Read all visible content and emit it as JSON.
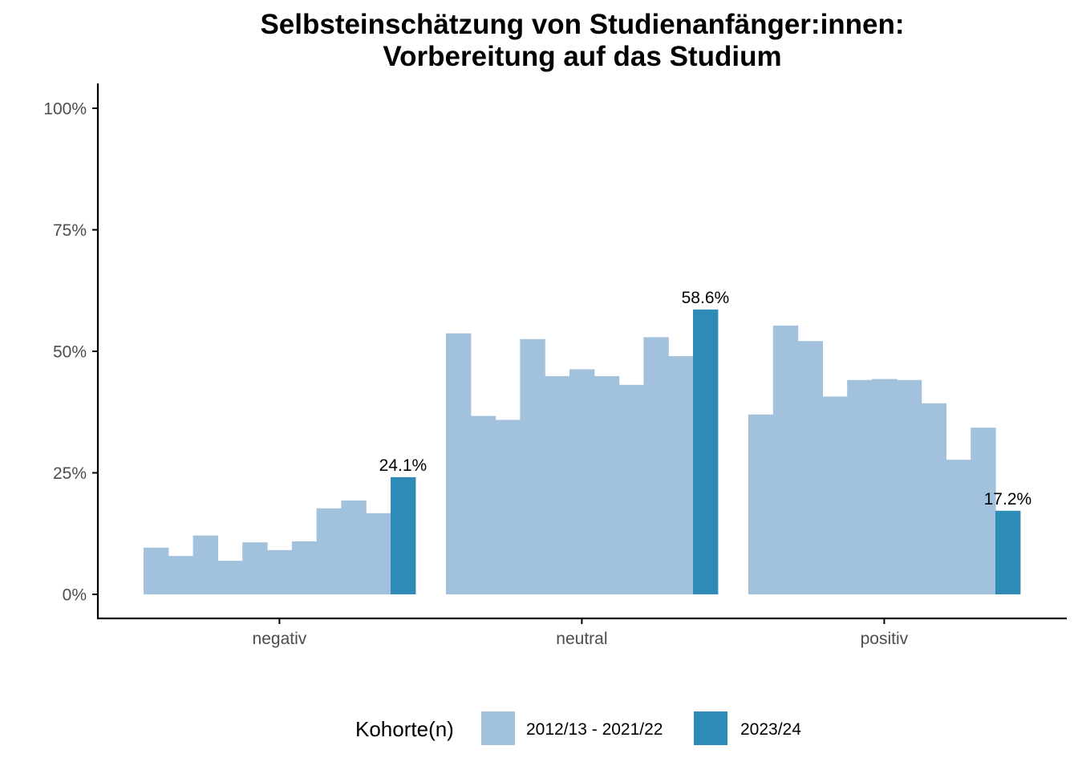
{
  "chart_data": {
    "type": "bar",
    "title_lines": [
      "Selbsteinschätzung von Studienanfänger:innen:",
      "Vorbereitung auf das Studium"
    ],
    "xlabel": "",
    "ylabel": "",
    "categories": [
      "negativ",
      "neutral",
      "positiv"
    ],
    "ylim": [
      0,
      1
    ],
    "y_ticks": [
      0,
      0.25,
      0.5,
      0.75,
      1
    ],
    "y_tick_labels": [
      "0%",
      "25%",
      "50%",
      "75%",
      "100%"
    ],
    "series": [
      {
        "name": "2012/13 - 2021/22",
        "color": "#a1c1dd",
        "values_per_category": [
          [
            0.096,
            0.079,
            0.121,
            0.069,
            0.107,
            0.091,
            0.109,
            0.177,
            0.193,
            0.167
          ],
          [
            0.537,
            0.367,
            0.359,
            0.525,
            0.449,
            0.463,
            0.449,
            0.431,
            0.529,
            0.49
          ],
          [
            0.37,
            0.553,
            0.521,
            0.407,
            0.441,
            0.443,
            0.441,
            0.393,
            0.277,
            0.343
          ]
        ]
      },
      {
        "name": "2023/24",
        "color": "#2e8bb8",
        "values": [
          0.241,
          0.586,
          0.172
        ],
        "data_labels": [
          "24.1%",
          "58.6%",
          "17.2%"
        ]
      }
    ],
    "legend": {
      "title": "Kohorte(n)",
      "placement": "bottom",
      "entries": [
        "2012/13 - 2021/22",
        "2023/24"
      ]
    },
    "grid": false
  }
}
